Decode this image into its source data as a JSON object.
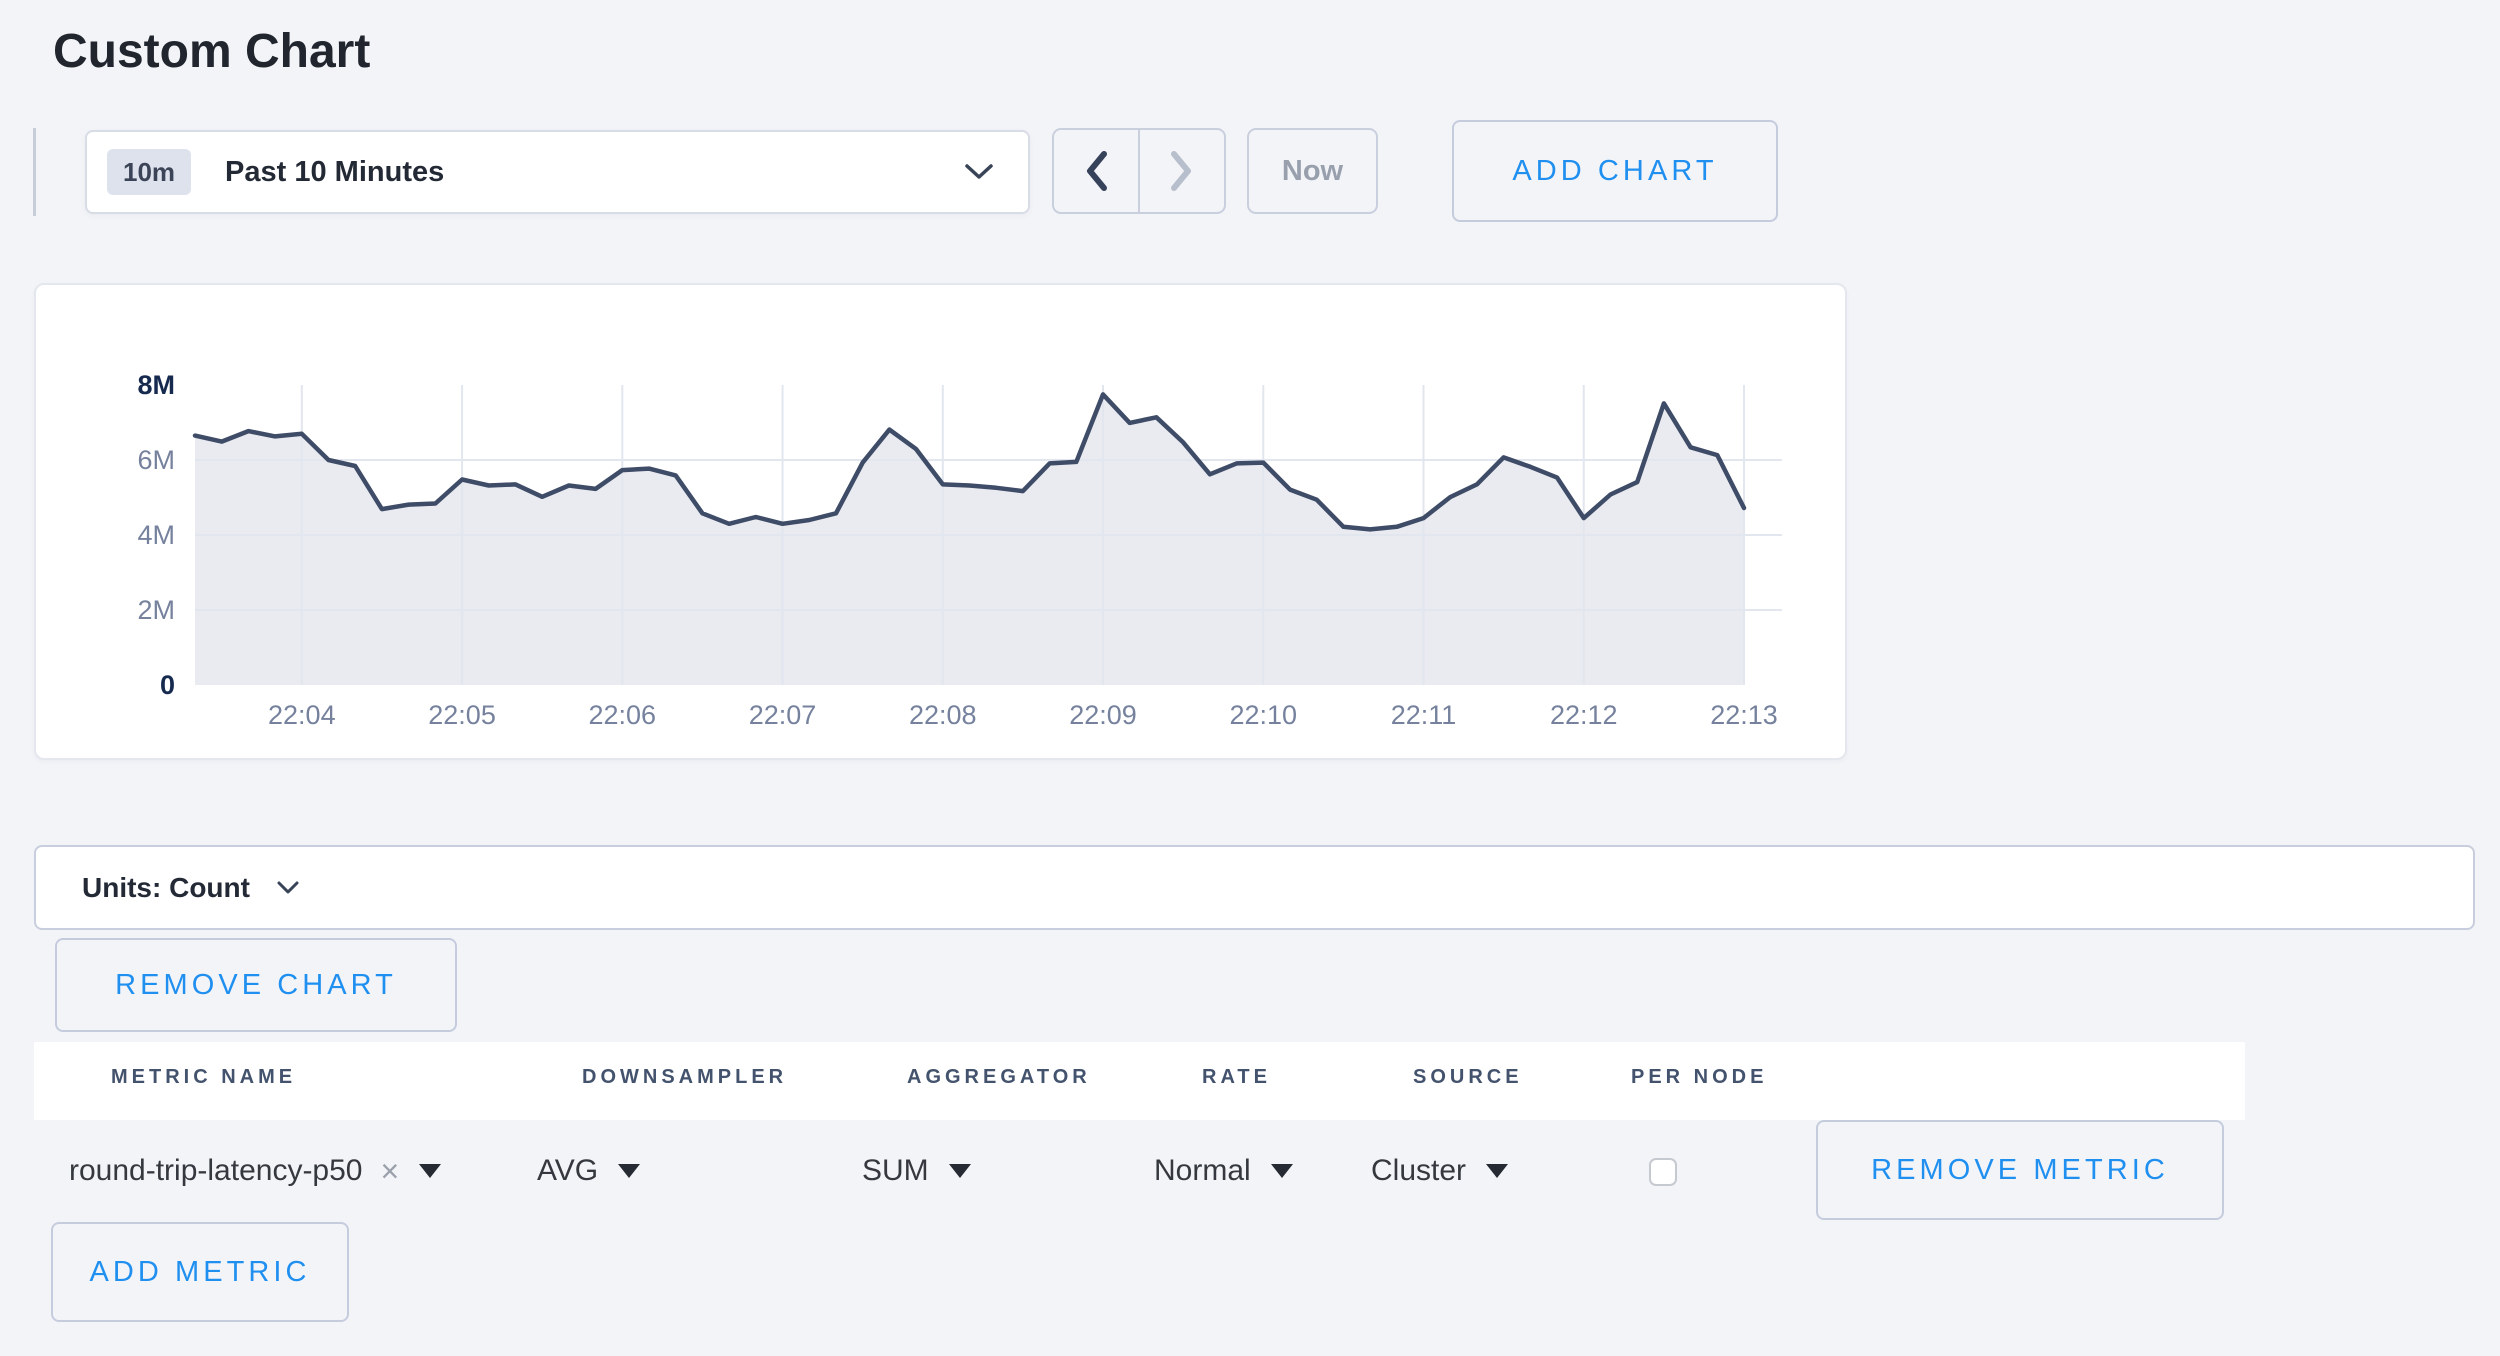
{
  "page": {
    "title": "Custom Chart"
  },
  "colors": {
    "accent_blue": "#1F8FF0",
    "page_background": "#F3F4F8",
    "line_color": "#3F4C67",
    "fill_color": "#E9EBF1",
    "grid_color": "#E2E6EE",
    "axis_label_gray": "#76829D",
    "axis_label_dark": "#16294E"
  },
  "icons": {
    "time_dropdown": "chevron-down-icon",
    "back": "chevron-left-icon",
    "forward": "chevron-right-icon",
    "units_dropdown": "chevron-down-icon",
    "select_caret": "caret-down-icon",
    "clear_metric": "x-icon"
  },
  "toolbar": {
    "range_badge": "10m",
    "range_label": "Past 10 Minutes",
    "now_label": "Now",
    "add_chart_label": "ADD CHART"
  },
  "chart_data": {
    "type": "area",
    "title": "",
    "x_start_time": "22:03:20",
    "point_interval_seconds": 10,
    "x_tick_labels": [
      "22:04",
      "22:05",
      "22:06",
      "22:07",
      "22:08",
      "22:09",
      "22:10",
      "22:11",
      "22:12",
      "22:13"
    ],
    "y_tick_labels": [
      "8M",
      "6M",
      "4M",
      "2M",
      "0"
    ],
    "y_max_millions": 8,
    "ylim": [
      0,
      8000000
    ],
    "grid": true,
    "legend": "none",
    "values_millions": [
      6.65,
      6.49,
      6.77,
      6.63,
      6.7,
      6.0,
      5.84,
      4.69,
      4.81,
      4.84,
      5.48,
      5.32,
      5.35,
      5.02,
      5.32,
      5.23,
      5.73,
      5.77,
      5.59,
      4.58,
      4.3,
      4.48,
      4.3,
      4.4,
      4.58,
      5.93,
      6.81,
      6.29,
      5.35,
      5.32,
      5.26,
      5.17,
      5.91,
      5.95,
      7.75,
      6.99,
      7.14,
      6.47,
      5.62,
      5.91,
      5.93,
      5.21,
      4.94,
      4.22,
      4.15,
      4.22,
      4.45,
      5.01,
      5.35,
      6.07,
      5.82,
      5.53,
      4.45,
      5.08,
      5.41,
      7.51,
      6.34,
      6.13,
      4.72
    ]
  },
  "units_bar": {
    "label": "Units: Count"
  },
  "buttons": {
    "remove_chart": "REMOVE CHART",
    "add_metric": "ADD METRIC"
  },
  "metrics_table": {
    "headers": [
      "METRIC NAME",
      "DOWNSAMPLER",
      "AGGREGATOR",
      "RATE",
      "SOURCE",
      "PER NODE"
    ],
    "rows": [
      {
        "metric_name": "round-trip-latency-p50",
        "downsampler": "AVG",
        "aggregator": "SUM",
        "rate": "Normal",
        "source": "Cluster",
        "per_node_checked": false,
        "remove_label": "REMOVE METRIC"
      }
    ]
  }
}
